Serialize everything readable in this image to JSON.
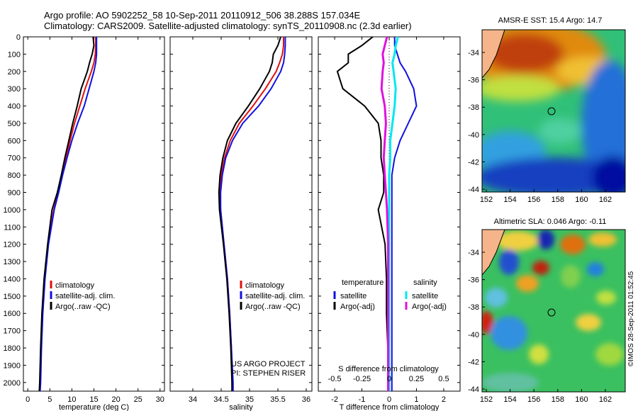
{
  "title": {
    "line1": "Argo profile: AO 5902252_58 10-Sep-2011 20110912_506 38.288S 157.034E",
    "line2": "Climatology: CARS2009. Satellite-adjusted climatology: synTS_20110908.nc (2.3d earlier)"
  },
  "colors": {
    "climatology": "#e01010",
    "satellite": "#1010e0",
    "argo": "#000000",
    "salinity_satellite": "#00e8f0",
    "salinity_argo": "#e010e0"
  },
  "chart_data": [
    {
      "type": "line",
      "name": "temperature-profile",
      "xlabel": "temperature (deg C)",
      "ylabel": "",
      "xlim": [
        -1,
        31
      ],
      "ylim": [
        2050,
        0
      ],
      "xticks": [
        0,
        5,
        10,
        15,
        20,
        25,
        30
      ],
      "yticks": [
        0,
        100,
        200,
        300,
        400,
        500,
        600,
        700,
        800,
        900,
        1000,
        1100,
        1200,
        1300,
        1400,
        1500,
        1600,
        1700,
        1800,
        1900,
        2000
      ],
      "depth": [
        0,
        50,
        100,
        150,
        200,
        300,
        400,
        500,
        600,
        700,
        800,
        900,
        1000,
        1200,
        1400,
        1600,
        1800,
        2000,
        2050
      ],
      "series": [
        {
          "name": "climatology",
          "values": [
            15.4,
            15.4,
            15.3,
            15.0,
            14.4,
            13.0,
            11.8,
            10.6,
            9.6,
            8.7,
            7.8,
            6.9,
            5.9,
            4.6,
            3.8,
            3.3,
            3.0,
            2.8,
            2.7
          ]
        },
        {
          "name": "satellite-adj. clim.",
          "values": [
            15.6,
            15.6,
            15.6,
            15.4,
            15.0,
            13.9,
            12.8,
            11.3,
            10.0,
            8.9,
            7.9,
            7.0,
            6.0,
            4.7,
            3.9,
            3.4,
            3.1,
            2.9,
            2.8
          ]
        },
        {
          "name": "Argo(..raw -QC)",
          "values": [
            14.8,
            15.0,
            14.6,
            14.0,
            13.5,
            12.1,
            11.2,
            10.2,
            9.3,
            8.4,
            7.6,
            6.7,
            5.5,
            4.5,
            3.7,
            3.2,
            2.9,
            2.7,
            2.6
          ]
        }
      ],
      "legend": [
        "climatology",
        "satellite-adj. clim.",
        "Argo(..raw -QC)"
      ]
    },
    {
      "type": "line",
      "name": "salinity-profile",
      "xlabel": "salinity",
      "xlim": [
        33.6,
        36.1
      ],
      "ylim": [
        2050,
        0
      ],
      "xticks": [
        34,
        34.5,
        35,
        35.5,
        36
      ],
      "xticklabels": [
        "34",
        "34.5",
        "35",
        "35.5",
        "36"
      ],
      "depth": [
        0,
        50,
        100,
        150,
        200,
        300,
        400,
        500,
        600,
        700,
        800,
        900,
        1000,
        1200,
        1400,
        1600,
        1800,
        2000,
        2050
      ],
      "series": [
        {
          "name": "climatology",
          "values": [
            35.6,
            35.6,
            35.58,
            35.53,
            35.47,
            35.28,
            35.06,
            34.82,
            34.66,
            34.56,
            34.5,
            34.48,
            34.49,
            34.55,
            34.61,
            34.65,
            34.68,
            34.7,
            34.7
          ]
        },
        {
          "name": "satellite-adj. clim.",
          "values": [
            35.63,
            35.63,
            35.62,
            35.6,
            35.55,
            35.38,
            35.16,
            34.88,
            34.7,
            34.58,
            34.52,
            34.49,
            34.49,
            34.55,
            34.61,
            34.65,
            34.68,
            34.71,
            34.71
          ]
        },
        {
          "name": "Argo(..raw -QC)",
          "values": [
            35.55,
            35.5,
            35.42,
            35.4,
            35.35,
            35.18,
            34.98,
            34.76,
            34.61,
            34.53,
            34.48,
            34.46,
            34.47,
            34.54,
            34.6,
            34.64,
            34.67,
            34.69,
            34.69
          ]
        }
      ],
      "legend": [
        "climatology",
        "satellite-adj. clim.",
        "Argo(..raw -QC)"
      ],
      "annotation": [
        "US ARGO PROJECT",
        "PI: STEPHEN RISER"
      ]
    },
    {
      "type": "line",
      "name": "difference-profile",
      "xlabel": "T difference from climatology",
      "top_label": "S difference from climatology",
      "xlim": [
        -2.6,
        2.6
      ],
      "ylim": [
        2050,
        0
      ],
      "xticks": [
        -2,
        -1,
        0,
        1,
        2
      ],
      "s_ticklabels": [
        "-0.5",
        "-0.25",
        "0",
        "0.25",
        "0.5"
      ],
      "depth": [
        0,
        50,
        100,
        150,
        200,
        300,
        400,
        500,
        600,
        700,
        800,
        900,
        1000,
        1200,
        1400,
        1600,
        1800,
        2000,
        2050
      ],
      "series": [
        {
          "name": "temperature satellite",
          "values": [
            0.2,
            0.2,
            0.3,
            0.4,
            0.6,
            0.9,
            1.0,
            0.7,
            0.4,
            0.2,
            0.1,
            0.1,
            0.1,
            0.1,
            0.1,
            0.1,
            0.1,
            0.1,
            0.1
          ]
        },
        {
          "name": "temperature Argo(-adj)",
          "values": [
            -0.6,
            -1.0,
            -1.5,
            -1.5,
            -1.9,
            -1.7,
            -0.9,
            -0.4,
            -0.3,
            -0.3,
            -0.2,
            -0.2,
            -0.4,
            -0.15,
            -0.1,
            -0.1,
            -0.05,
            -0.05,
            -0.05
          ]
        },
        {
          "name": "salinity satellite",
          "values": [
            0.08,
            0.06,
            0.05,
            0.03,
            0.04,
            0.06,
            0.05,
            0.03,
            0.01,
            0.01,
            0.0,
            0.0,
            0.0,
            0.0,
            0.0,
            0.0,
            0.0,
            0.0,
            0.0
          ]
        },
        {
          "name": "salinity Argo(-adj)",
          "values": [
            -0.02,
            -0.04,
            -0.06,
            -0.05,
            -0.06,
            -0.07,
            -0.04,
            -0.03,
            -0.04,
            -0.05,
            -0.04,
            -0.03,
            -0.02,
            -0.01,
            -0.01,
            -0.01,
            -0.01,
            -0.01,
            -0.01
          ]
        }
      ],
      "legend_headers": [
        "temperature",
        "salinity"
      ],
      "legend": [
        "satellite",
        "Argo(-adj)",
        "satellite",
        "Argo(-adj)"
      ]
    }
  ],
  "maps": [
    {
      "name": "sst-map",
      "title": "AMSR-E SST: 15.4 Argo: 14.7",
      "xticks": [
        "152",
        "154",
        "156",
        "158",
        "160",
        "162"
      ],
      "yticks": [
        "-34",
        "-36",
        "-38",
        "-40",
        "-42",
        "-44"
      ]
    },
    {
      "name": "sla-map",
      "title": "Altimetric SLA: 0.046 Argo: -0.11",
      "xticks": [
        "152",
        "154",
        "156",
        "158",
        "160",
        "162"
      ],
      "yticks": [
        "-34",
        "-36",
        "-38",
        "-40",
        "-42",
        "-44"
      ]
    }
  ],
  "credit": "©IMOS 28-Sep-2011 01:52:45"
}
